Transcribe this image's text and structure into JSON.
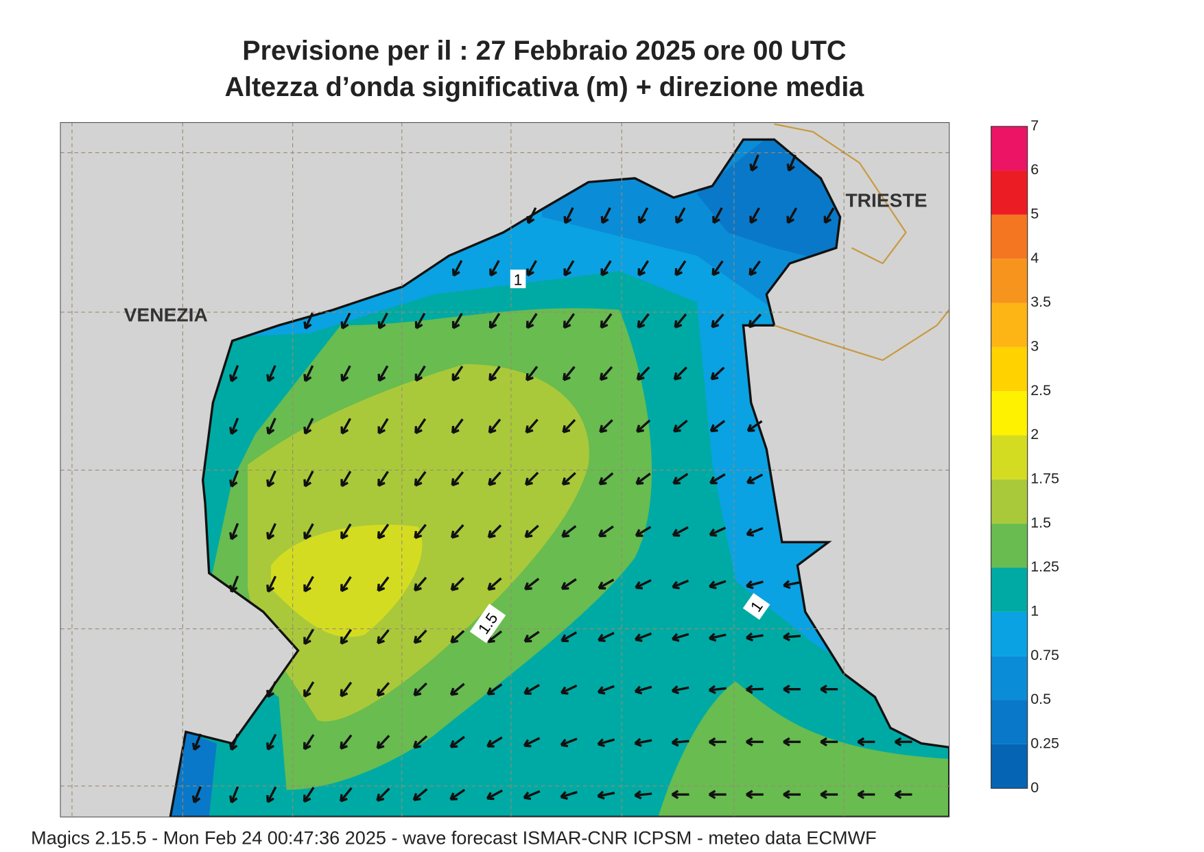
{
  "header": {
    "title_line1": "Previsione per il  :  27  Febbraio 2025    ore 00 UTC",
    "title_line2": "Altezza d’onda significativa (m) + direzione media"
  },
  "legend": {
    "labels": [
      "0",
      "0.25",
      "0.5",
      "0.75",
      "1",
      "1.25",
      "1.5",
      "1.75",
      "2",
      "2.5",
      "3",
      "3.5",
      "4",
      "5",
      "6",
      "7"
    ],
    "colors": [
      "#0664b4",
      "#0a78c8",
      "#0b8cd6",
      "#0aa2e2",
      "#00aaa4",
      "#68bc50",
      "#a9c93a",
      "#d4dc22",
      "#fff200",
      "#ffd200",
      "#fdb515",
      "#f7941d",
      "#f47621",
      "#ec1c24",
      "#ec1465"
    ]
  },
  "places": [
    "VENEZIA",
    "TRIESTE"
  ],
  "contour_labels": [
    "1",
    "1.5",
    "1"
  ],
  "footer": "Magics 2.15.5 - Mon Feb 24 00:47:36 2025 - wave forecast  ISMAR-CNR  ICPSM - meteo data   ECMWF"
}
